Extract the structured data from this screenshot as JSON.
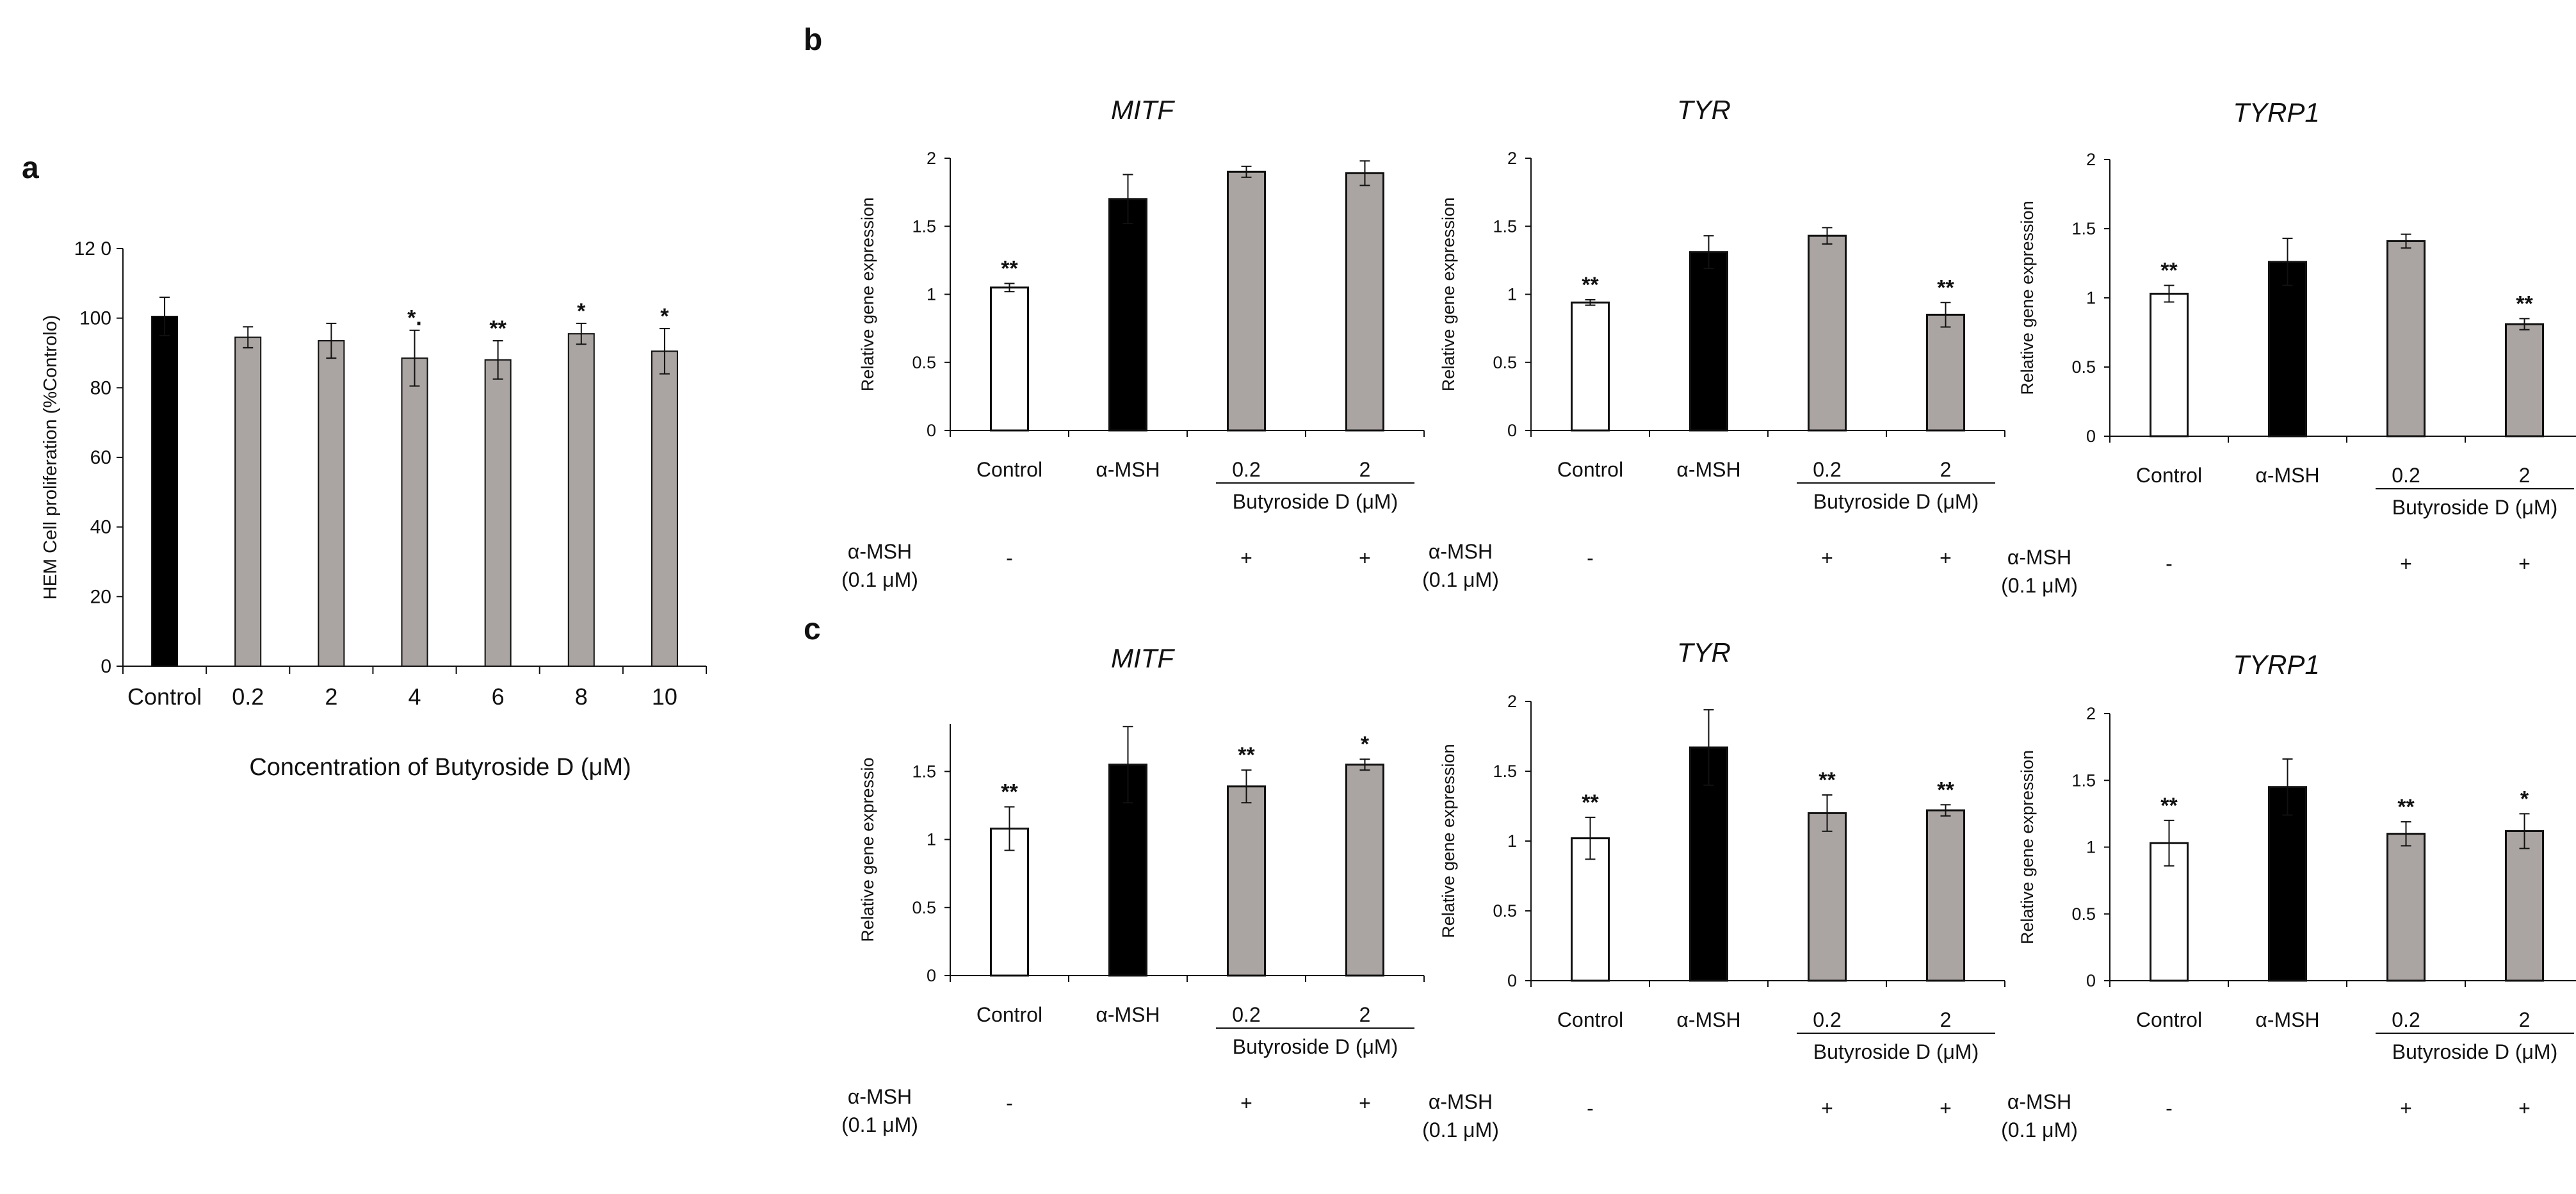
{
  "panel_labels": {
    "a": "a",
    "b": "b",
    "c": "c"
  },
  "chart_data": [
    {
      "id": "a",
      "type": "bar",
      "title": "",
      "xlabel": "Concentration of Butyroside D (μM)",
      "ylabel": "HEM Cell proliferation (%Controlo)",
      "ylim": [
        0,
        120
      ],
      "yticks": [
        "0",
        "20",
        "40",
        "60",
        "80",
        "100",
        "12 0"
      ],
      "categories": [
        "Control",
        "0.2",
        "2",
        "4",
        "6",
        "8",
        "10"
      ],
      "values": [
        100.5,
        94.5,
        93.5,
        88.5,
        88,
        95.5,
        90.5
      ],
      "errors": [
        5.5,
        3,
        5,
        8,
        5.5,
        3,
        6.5
      ],
      "colors": [
        "#000000",
        "#aaa5a2",
        "#aaa5a2",
        "#aaa5a2",
        "#aaa5a2",
        "#aaa5a2",
        "#aaa5a2"
      ],
      "significance": [
        "",
        "",
        "",
        "*.",
        "**",
        "*",
        "*"
      ]
    },
    {
      "id": "b-mitf",
      "type": "bar",
      "title": "MITF",
      "ylabel": "Relative gene expression",
      "ylim": [
        0,
        2
      ],
      "yticks": [
        "0",
        "0.5",
        "1",
        "1.5",
        "2"
      ],
      "categories": [
        "Control",
        "α-MSH",
        "0.2",
        "2"
      ],
      "values": [
        1.05,
        1.7,
        1.9,
        1.89
      ],
      "errors": [
        0.03,
        0.18,
        0.04,
        0.09
      ],
      "colors": [
        "#ffffff",
        "#000000",
        "#aaa5a2",
        "#aaa5a2"
      ],
      "significance": [
        "**",
        "",
        "",
        ""
      ],
      "group_label": "Butyroside D (μM)",
      "treatment_label": [
        "α-MSH",
        "(0.1 μM)"
      ],
      "treatment": [
        "-",
        "",
        "+",
        "+"
      ]
    },
    {
      "id": "b-tyr",
      "type": "bar",
      "title": "TYR",
      "ylabel": "Relative gene expression",
      "ylim": [
        0,
        2
      ],
      "yticks": [
        "0",
        "0.5",
        "1",
        "1.5",
        "2"
      ],
      "categories": [
        "Control",
        "α-MSH",
        "0.2",
        "2"
      ],
      "values": [
        0.94,
        1.31,
        1.43,
        0.85
      ],
      "errors": [
        0.02,
        0.12,
        0.06,
        0.09
      ],
      "colors": [
        "#ffffff",
        "#000000",
        "#aaa5a2",
        "#aaa5a2"
      ],
      "significance": [
        "**",
        "",
        "",
        "**"
      ],
      "group_label": "Butyroside D (μM)",
      "treatment_label": [
        "α-MSH",
        "(0.1 μM)"
      ],
      "treatment": [
        "-",
        "",
        "+",
        "+"
      ]
    },
    {
      "id": "b-tyrp1",
      "type": "bar",
      "title": "TYRP1",
      "ylabel": "Relative gene expression",
      "ylim": [
        0,
        2
      ],
      "yticks": [
        "0",
        "0.5",
        "1",
        "1.5",
        "2"
      ],
      "categories": [
        "Control",
        "α-MSH",
        "0.2",
        "2"
      ],
      "values": [
        1.03,
        1.26,
        1.41,
        0.81
      ],
      "errors": [
        0.06,
        0.17,
        0.05,
        0.04
      ],
      "colors": [
        "#ffffff",
        "#000000",
        "#aaa5a2",
        "#aaa5a2"
      ],
      "significance": [
        "**",
        "",
        "",
        "**"
      ],
      "group_label": "Butyroside D (μM)",
      "treatment_label": [
        "α-MSH",
        "(0.1 μM)"
      ],
      "treatment": [
        "-",
        "",
        "+",
        "+"
      ]
    },
    {
      "id": "c-mitf",
      "type": "bar",
      "title": "MITF",
      "ylabel": "Relative gene expressio",
      "ylim": [
        0,
        1.85
      ],
      "yticks": [
        "0",
        "0.5",
        "1",
        "1.5"
      ],
      "tickvals": [
        0,
        0.5,
        1,
        1.5
      ],
      "categories": [
        "Control",
        "α-MSH",
        "0.2",
        "2"
      ],
      "values": [
        1.08,
        1.55,
        1.39,
        1.55
      ],
      "errors": [
        0.16,
        0.28,
        0.12,
        0.04
      ],
      "colors": [
        "#ffffff",
        "#000000",
        "#aaa5a2",
        "#aaa5a2"
      ],
      "significance": [
        "**",
        "",
        "**",
        "*"
      ],
      "group_label": "Butyroside D (μM)",
      "treatment_label": [
        "α-MSH",
        "(0.1 μM)"
      ],
      "treatment": [
        "-",
        "",
        "+",
        "+"
      ]
    },
    {
      "id": "c-tyr",
      "type": "bar",
      "title": "TYR",
      "ylabel": "Relative gene expression",
      "ylim": [
        0,
        2
      ],
      "yticks": [
        "0",
        "0.5",
        "1",
        "1.5",
        "2"
      ],
      "categories": [
        "Control",
        "α-MSH",
        "0.2",
        "2"
      ],
      "values": [
        1.02,
        1.67,
        1.2,
        1.22
      ],
      "errors": [
        0.15,
        0.27,
        0.13,
        0.04
      ],
      "colors": [
        "#ffffff",
        "#000000",
        "#aaa5a2",
        "#aaa5a2"
      ],
      "significance": [
        "**",
        "",
        "**",
        "**"
      ],
      "group_label": "Butyroside D (μM)",
      "treatment_label": [
        "α-MSH",
        "(0.1 μM)"
      ],
      "treatment": [
        "-",
        "",
        "+",
        "+"
      ]
    },
    {
      "id": "c-tyrp1",
      "type": "bar",
      "title": "TYRP1",
      "ylabel": "Relative gene expression",
      "ylim": [
        0,
        2
      ],
      "yticks": [
        "0",
        "0.5",
        "1",
        "1.5",
        "2"
      ],
      "categories": [
        "Control",
        "α-MSH",
        "0.2",
        "2"
      ],
      "values": [
        1.03,
        1.45,
        1.1,
        1.12
      ],
      "errors": [
        0.17,
        0.21,
        0.09,
        0.13
      ],
      "colors": [
        "#ffffff",
        "#000000",
        "#aaa5a2",
        "#aaa5a2"
      ],
      "significance": [
        "**",
        "",
        "**",
        "*"
      ],
      "group_label": "Butyroside D (μM)",
      "treatment_label": [
        "α-MSH",
        "(0.1 μM)"
      ],
      "treatment": [
        "-",
        "",
        "+",
        "+"
      ]
    }
  ]
}
